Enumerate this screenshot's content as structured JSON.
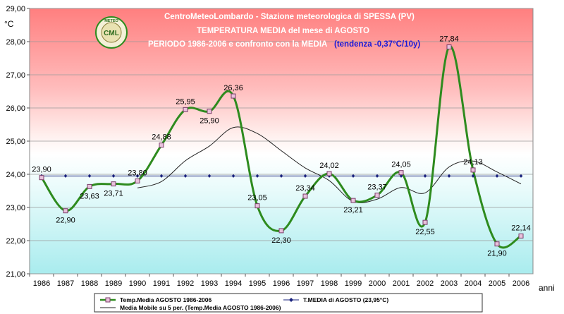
{
  "chart_data": {
    "type": "line",
    "title_lines": [
      "CentroMeteoLombardo - Stazione meteorologica di SPESSA (PV)",
      "TEMPERATURA MEDIA del mese di AGOSTO",
      "PERIODO 1986-2006 e confronto con la MEDIA"
    ],
    "trend_note": "(tendenza -0,37°C/10y)",
    "logo_text": "CENTRO METEO LOMBARDO CML",
    "ylabel": "°C",
    "xlabel": "anni",
    "ylim": [
      21,
      29
    ],
    "y_ticks": [
      "21,00",
      "22,00",
      "23,00",
      "24,00",
      "25,00",
      "26,00",
      "27,00",
      "28,00",
      "29,00"
    ],
    "categories": [
      "1986",
      "1987",
      "1988",
      "1989",
      "1990",
      "1991",
      "1992",
      "1993",
      "1994",
      "1995",
      "1996",
      "1997",
      "1998",
      "1999",
      "2000",
      "2001",
      "2002",
      "2003",
      "2004",
      "2005",
      "2006"
    ],
    "series": [
      {
        "name": "Temp.Media AGOSTO 1986-2006",
        "color": "#2e8b1e",
        "values": [
          23.9,
          22.9,
          23.63,
          23.71,
          23.8,
          24.88,
          25.95,
          25.9,
          26.36,
          23.05,
          22.3,
          23.34,
          24.02,
          23.21,
          23.37,
          24.05,
          22.55,
          27.84,
          24.13,
          21.9,
          22.14
        ],
        "labels": [
          "23,90",
          "22,90",
          "23,63",
          "23,71",
          "23,80",
          "24,88",
          "25,95",
          "25,90",
          "26,36",
          "23,05",
          "22,30",
          "23,34",
          "24,02",
          "23,21",
          "23,37",
          "24,05",
          "22,55",
          "27,84",
          "24,13",
          "21,90",
          "22,14"
        ]
      },
      {
        "name": "T.MEDIA di AGOSTO (23,95°C)",
        "color": "#1a237e",
        "values": [
          23.95,
          23.95,
          23.95,
          23.95,
          23.95,
          23.95,
          23.95,
          23.95,
          23.95,
          23.95,
          23.95,
          23.95,
          23.95,
          23.95,
          23.95,
          23.95,
          23.95,
          23.95,
          23.95,
          23.95,
          23.95
        ]
      },
      {
        "name": "Media Mobile su 5 per. (Temp.Media AGOSTO 1986-2006)",
        "color": "#222222",
        "values": [
          null,
          null,
          null,
          null,
          23.59,
          23.78,
          24.41,
          24.85,
          25.41,
          25.23,
          24.71,
          24.19,
          23.81,
          23.18,
          23.25,
          23.6,
          23.44,
          24.22,
          24.4,
          24.07,
          23.71
        ]
      }
    ],
    "legend_position": "bottom",
    "grid": true
  }
}
